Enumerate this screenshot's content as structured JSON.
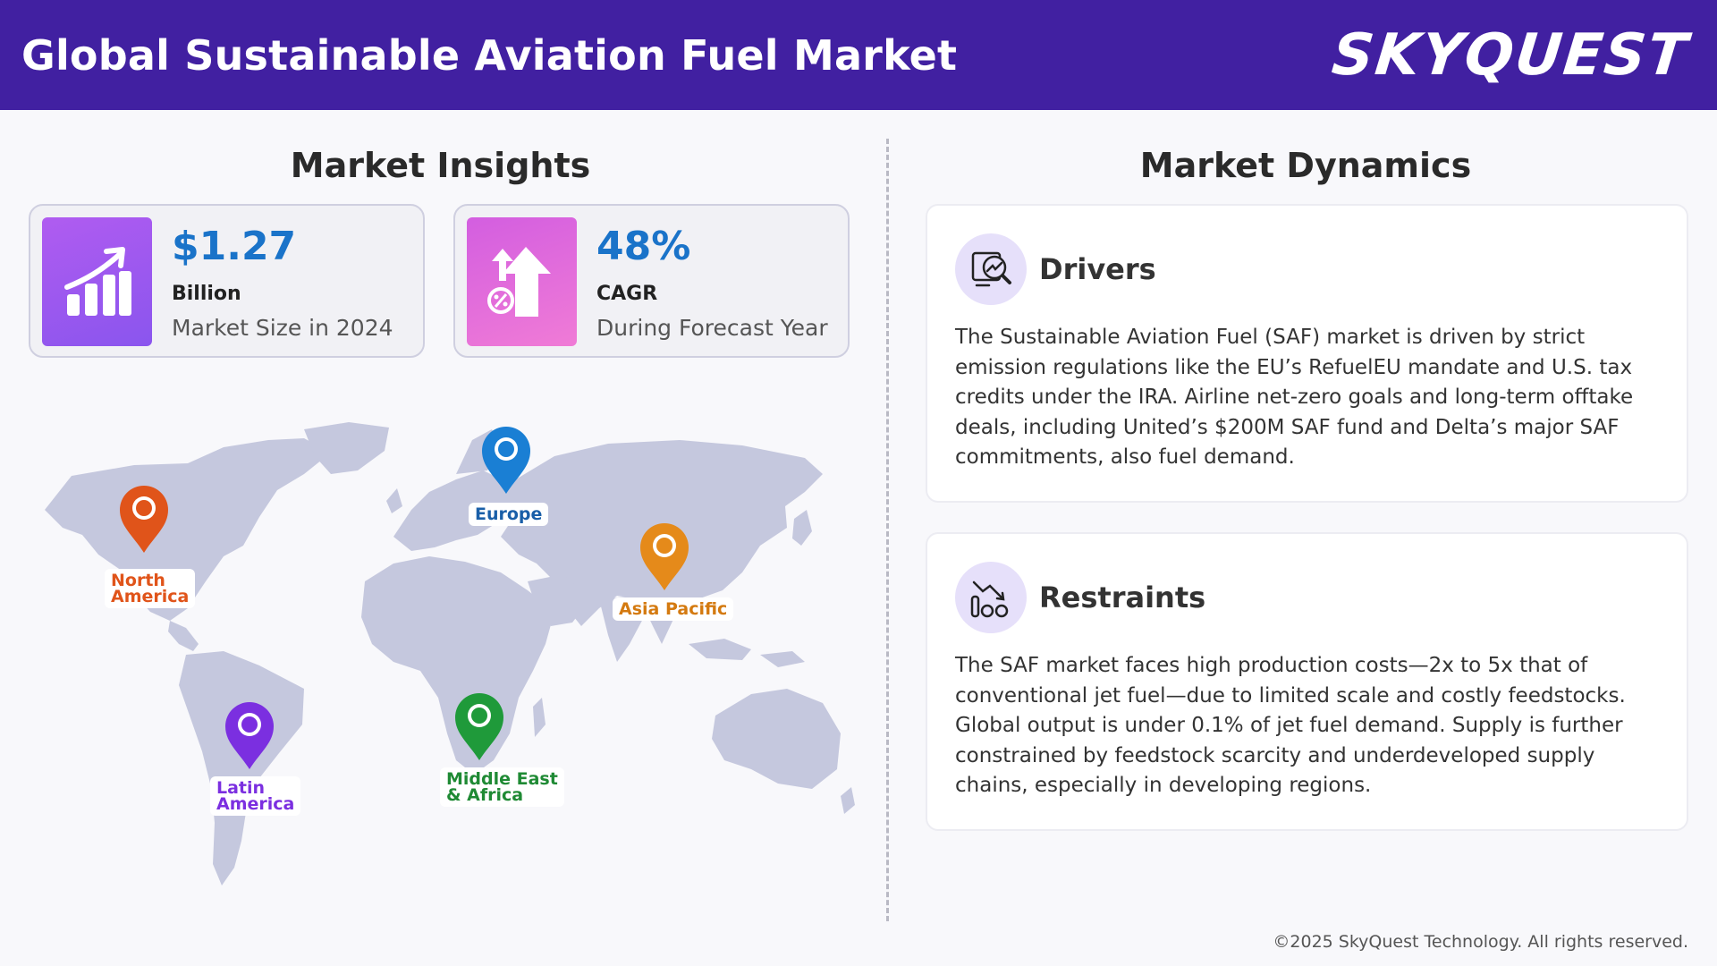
{
  "header": {
    "title": "Global Sustainable Aviation Fuel Market",
    "brand": "SKYQUEST"
  },
  "insights": {
    "heading": "Market Insights",
    "stats": [
      {
        "value": "$1.27",
        "unit": "Billion",
        "label": "Market Size in 2024",
        "icon": "bar-chart-growth-icon"
      },
      {
        "value": "48%",
        "unit": "CAGR",
        "label": "During Forecast Year",
        "icon": "percent-arrow-up-icon"
      }
    ],
    "regions": [
      {
        "name": "North America",
        "line1": "North",
        "line2": "America",
        "color": "#e0541a"
      },
      {
        "name": "Europe",
        "line1": "Europe",
        "line2": "",
        "color": "#1a7fd4"
      },
      {
        "name": "Asia Pacific",
        "line1": "Asia Pacific",
        "line2": "",
        "color": "#e58a1a"
      },
      {
        "name": "Latin America",
        "line1": "Latin",
        "line2": "America",
        "color": "#7b2fe0"
      },
      {
        "name": "Middle East & Africa",
        "line1": "Middle East",
        "line2": "& Africa",
        "color": "#1f9a3a"
      }
    ]
  },
  "dynamics": {
    "heading": "Market Dynamics",
    "cards": [
      {
        "title": "Drivers",
        "icon": "analytics-search-icon",
        "body": "The Sustainable Aviation Fuel (SAF) market is driven by strict emission regulations like the EU’s RefuelEU mandate and U.S. tax credits under the IRA. Airline net-zero goals and long-term offtake deals, including United’s $200M SAF fund and Delta’s major SAF commitments, also fuel demand."
      },
      {
        "title": "Restraints",
        "icon": "declining-chart-icon",
        "body": "The SAF market faces high production costs—2x to 5x that of conventional jet fuel—due to limited scale and costly feedstocks. Global output is under 0.1% of jet fuel demand. Supply is further constrained by feedstock scarcity and underdeveloped supply chains, especially in developing regions."
      }
    ]
  },
  "footer": {
    "copyright": "©2025 SkyQuest Technology. All rights reserved."
  },
  "colors": {
    "header_bg": "#4120a1",
    "value_blue": "#1a73c9",
    "map_land": "#c5c8de"
  }
}
